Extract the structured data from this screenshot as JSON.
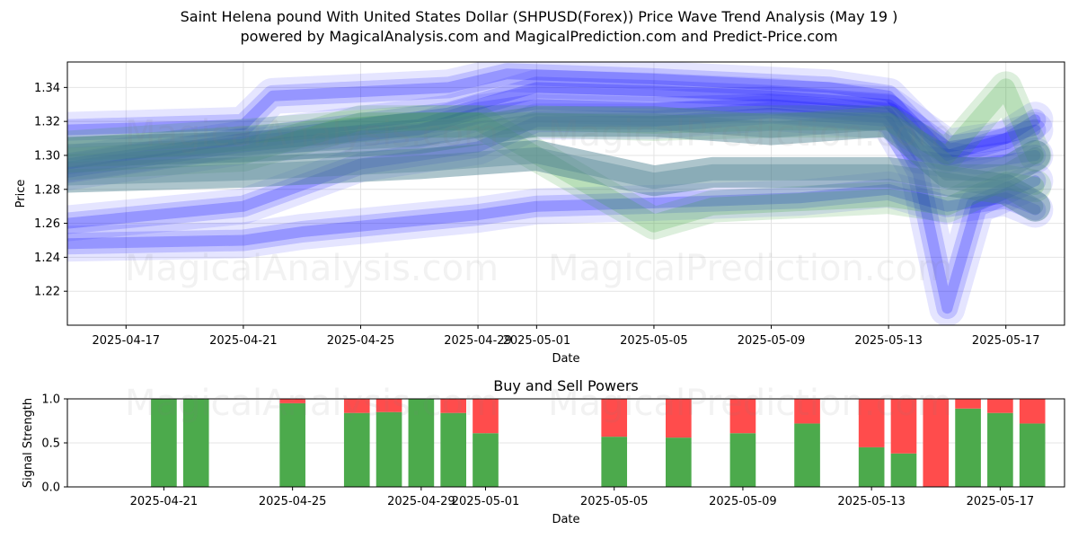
{
  "title": "Saint Helena pound With United States Dollar (SHPUSD(Forex)) Price Wave Trend Analysis (May 19 )",
  "subtitle": "powered by MagicalAnalysis.com and MagicalPrediction.com and Predict-Price.com",
  "watermarks": [
    "MagicalAnalysis.com",
    "MagicalPrediction.com"
  ],
  "colors": {
    "buy": "#4caa4c",
    "sell": "#ff4c4c",
    "wave_blue": "#0000ff",
    "wave_green": "#2e9e2e",
    "wave_teal": "#4a7f8f"
  },
  "chart_data": [
    {
      "type": "line",
      "name": "price-wave-trend",
      "xlabel": "Date",
      "ylabel": "Price",
      "x_range": [
        "2025-04-15",
        "2025-05-19"
      ],
      "ylim": [
        1.2,
        1.355
      ],
      "x_ticks": [
        "2025-04-17",
        "2025-04-21",
        "2025-04-25",
        "2025-04-29",
        "2025-05-01",
        "2025-05-05",
        "2025-05-09",
        "2025-05-13",
        "2025-05-17"
      ],
      "y_ticks": [
        1.22,
        1.24,
        1.26,
        1.28,
        1.3,
        1.32,
        1.34
      ],
      "grid": true,
      "series": [
        {
          "color": "blue",
          "x": [
            "2025-04-15",
            "2025-04-21",
            "2025-04-22",
            "2025-04-28",
            "2025-04-30",
            "2025-05-05",
            "2025-05-11",
            "2025-05-13",
            "2025-05-15",
            "2025-05-17",
            "2025-05-18"
          ],
          "y": [
            1.315,
            1.318,
            1.335,
            1.34,
            1.348,
            1.345,
            1.34,
            1.335,
            1.3,
            1.31,
            1.321
          ]
        },
        {
          "color": "blue",
          "x": [
            "2025-04-15",
            "2025-04-21",
            "2025-04-28",
            "2025-05-01",
            "2025-05-05",
            "2025-05-09",
            "2025-05-13",
            "2025-05-15",
            "2025-05-17",
            "2025-05-18"
          ],
          "y": [
            1.295,
            1.31,
            1.325,
            1.34,
            1.338,
            1.335,
            1.33,
            1.305,
            1.31,
            1.315
          ]
        },
        {
          "color": "blue",
          "x": [
            "2025-04-15",
            "2025-04-21",
            "2025-04-27",
            "2025-04-29",
            "2025-05-01",
            "2025-05-05",
            "2025-05-09",
            "2025-05-13",
            "2025-05-14",
            "2025-05-16",
            "2025-05-18"
          ],
          "y": [
            1.29,
            1.305,
            1.315,
            1.325,
            1.33,
            1.328,
            1.33,
            1.325,
            1.3,
            1.295,
            1.3
          ]
        },
        {
          "color": "blue",
          "x": [
            "2025-04-15",
            "2025-04-21",
            "2025-04-25",
            "2025-04-29",
            "2025-05-01",
            "2025-05-05",
            "2025-05-09",
            "2025-05-13",
            "2025-05-14",
            "2025-05-15",
            "2025-05-16",
            "2025-05-18"
          ],
          "y": [
            1.26,
            1.27,
            1.295,
            1.305,
            1.32,
            1.32,
            1.325,
            1.32,
            1.29,
            1.21,
            1.27,
            1.285
          ]
        },
        {
          "color": "blue",
          "x": [
            "2025-04-15",
            "2025-04-21",
            "2025-04-23",
            "2025-04-29",
            "2025-05-01",
            "2025-05-05",
            "2025-05-10",
            "2025-05-13",
            "2025-05-15",
            "2025-05-17",
            "2025-05-18"
          ],
          "y": [
            1.248,
            1.25,
            1.255,
            1.265,
            1.27,
            1.272,
            1.275,
            1.28,
            1.27,
            1.275,
            1.268
          ]
        },
        {
          "color": "green",
          "x": [
            "2025-04-15",
            "2025-04-21",
            "2025-04-25",
            "2025-04-29",
            "2025-05-01",
            "2025-05-05",
            "2025-05-07",
            "2025-05-13",
            "2025-05-15",
            "2025-05-17",
            "2025-05-18"
          ],
          "y": [
            1.295,
            1.3,
            1.32,
            1.32,
            1.3,
            1.26,
            1.27,
            1.275,
            1.27,
            1.285,
            1.282
          ]
        },
        {
          "color": "green",
          "x": [
            "2025-04-15",
            "2025-04-21",
            "2025-04-27",
            "2025-05-01",
            "2025-05-05",
            "2025-05-09",
            "2025-05-13",
            "2025-05-15",
            "2025-05-17",
            "2025-05-18"
          ],
          "y": [
            1.305,
            1.312,
            1.32,
            1.32,
            1.318,
            1.32,
            1.32,
            1.3,
            1.34,
            1.3
          ]
        },
        {
          "color": "teal",
          "x": [
            "2025-04-15",
            "2025-04-21",
            "2025-04-27",
            "2025-05-01",
            "2025-05-05",
            "2025-05-07",
            "2025-05-13",
            "2025-05-15",
            "2025-05-17",
            "2025-05-18"
          ],
          "y": [
            1.287,
            1.29,
            1.295,
            1.3,
            1.285,
            1.29,
            1.29,
            1.285,
            1.28,
            1.27
          ]
        },
        {
          "color": "teal",
          "x": [
            "2025-04-15",
            "2025-04-21",
            "2025-04-27",
            "2025-05-01",
            "2025-05-05",
            "2025-05-09",
            "2025-05-13",
            "2025-05-15",
            "2025-05-17",
            "2025-05-18"
          ],
          "y": [
            1.302,
            1.305,
            1.31,
            1.32,
            1.32,
            1.315,
            1.32,
            1.29,
            1.29,
            1.3
          ]
        }
      ]
    },
    {
      "type": "bar",
      "name": "buy-and-sell-powers",
      "title": "Buy and Sell Powers",
      "xlabel": "Date",
      "ylabel": "Signal Strength",
      "x_range": [
        "2025-04-18",
        "2025-05-19"
      ],
      "ylim": [
        0,
        1
      ],
      "x_ticks": [
        "2025-04-21",
        "2025-04-25",
        "2025-04-29",
        "2025-05-01",
        "2025-05-05",
        "2025-05-09",
        "2025-05-13",
        "2025-05-17"
      ],
      "y_ticks": [
        "0.0",
        "0.5",
        "1.0"
      ],
      "grid": true,
      "stacked": true,
      "dates": [
        "2025-04-21",
        "2025-04-22",
        "2025-04-25",
        "2025-04-27",
        "2025-04-28",
        "2025-04-29",
        "2025-04-30",
        "2025-05-01",
        "2025-05-05",
        "2025-05-07",
        "2025-05-09",
        "2025-05-11",
        "2025-05-13",
        "2025-05-14",
        "2025-05-15",
        "2025-05-16",
        "2025-05-17",
        "2025-05-18"
      ],
      "buy": [
        1.0,
        1.0,
        0.95,
        0.84,
        0.85,
        1.0,
        0.84,
        0.61,
        0.57,
        0.56,
        0.61,
        0.72,
        0.45,
        0.38,
        0.0,
        0.89,
        0.84,
        0.72
      ],
      "sell": [
        0.0,
        0.0,
        0.05,
        0.16,
        0.15,
        0.0,
        0.16,
        0.39,
        0.43,
        0.44,
        0.39,
        0.28,
        0.55,
        0.62,
        1.0,
        0.11,
        0.16,
        0.28
      ]
    }
  ]
}
